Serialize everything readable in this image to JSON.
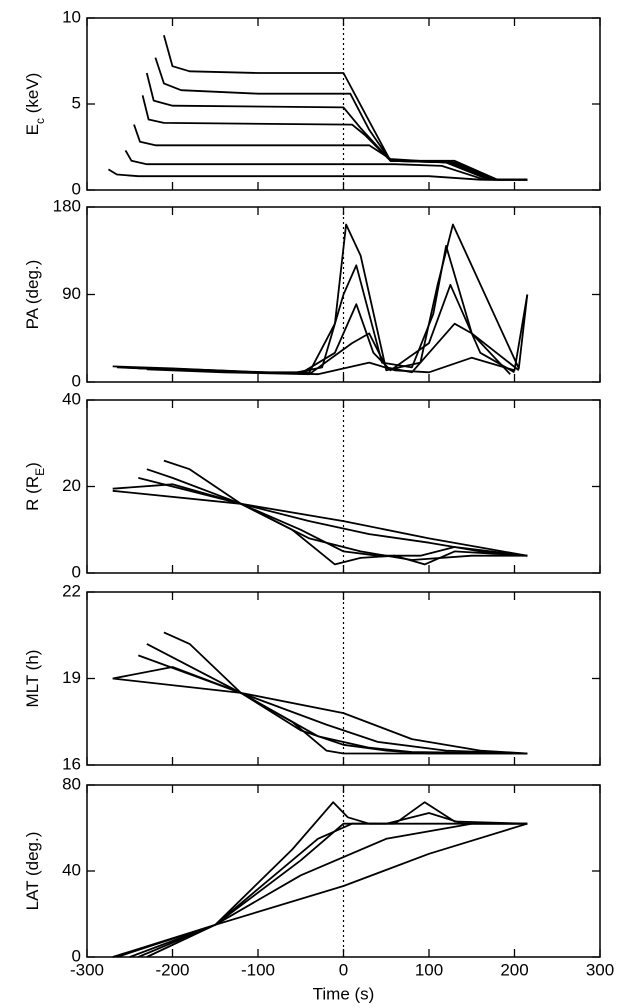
{
  "chart_data": [
    {
      "type": "line",
      "ylabel": [
        "E",
        "c",
        " (keV)"
      ],
      "xlim": [
        -300,
        300
      ],
      "xticks": [
        -300,
        -200,
        -100,
        0,
        100,
        200,
        300
      ],
      "ylim": [
        0,
        10
      ],
      "yticks": [
        0,
        5,
        10
      ],
      "vline": 0,
      "series": [
        {
          "color": "#000",
          "x": [
            -210,
            -200,
            -180,
            -100,
            0,
            30,
            55,
            130,
            180,
            215
          ],
          "values": [
            9,
            7.2,
            6.9,
            6.8,
            6.8,
            4,
            1.7,
            1.7,
            0.6,
            0.6
          ]
        },
        {
          "color": "#000",
          "x": [
            -220,
            -210,
            -190,
            -100,
            8,
            30,
            55,
            125,
            175,
            215
          ],
          "values": [
            7.7,
            6.2,
            5.8,
            5.6,
            5.6,
            3.5,
            1.7,
            1.6,
            0.6,
            0.6
          ]
        },
        {
          "color": "#000",
          "x": [
            -230,
            -222,
            -200,
            0,
            20,
            55,
            130,
            180,
            215
          ],
          "values": [
            6.8,
            5.2,
            4.9,
            4.8,
            3.6,
            1.7,
            1.6,
            0.6,
            0.6
          ]
        },
        {
          "color": "#000",
          "x": [
            -235,
            -228,
            -210,
            10,
            25,
            55,
            125,
            175,
            215
          ],
          "values": [
            5.5,
            4.1,
            3.9,
            3.8,
            3.2,
            1.7,
            1.6,
            0.6,
            0.6
          ]
        },
        {
          "color": "#000",
          "x": [
            -245,
            -238,
            -220,
            30,
            55,
            120,
            170,
            215
          ],
          "values": [
            3.8,
            2.8,
            2.6,
            2.6,
            1.8,
            1.6,
            0.6,
            0.6
          ]
        },
        {
          "color": "#000",
          "x": [
            -255,
            -248,
            -230,
            60,
            115,
            165,
            215
          ],
          "values": [
            2.3,
            1.7,
            1.5,
            1.5,
            1.4,
            0.6,
            0.6
          ]
        },
        {
          "color": "#000",
          "x": [
            -275,
            -265,
            -240,
            100,
            160,
            215
          ],
          "values": [
            1.2,
            0.9,
            0.8,
            0.8,
            0.6,
            0.6
          ]
        }
      ]
    },
    {
      "type": "line",
      "ylabel": [
        "PA (deg.)"
      ],
      "xlim": [
        -300,
        300
      ],
      "xticks": [
        -300,
        -200,
        -100,
        0,
        100,
        200,
        300
      ],
      "ylim": [
        0,
        180
      ],
      "yticks": [
        0,
        90,
        180
      ],
      "vline": 0,
      "series": [
        {
          "color": "#000",
          "x": [
            -270,
            -200,
            -100,
            -40,
            -10,
            3,
            20,
            50,
            90,
            110,
            128,
            205,
            215
          ],
          "values": [
            16,
            14,
            10,
            10,
            60,
            162,
            130,
            12,
            20,
            100,
            162,
            14,
            90
          ]
        },
        {
          "color": "#000",
          "x": [
            -250,
            -150,
            -60,
            -25,
            0,
            15,
            45,
            80,
            105,
            120,
            150,
            205
          ],
          "values": [
            15,
            12,
            9,
            15,
            90,
            120,
            20,
            15,
            70,
            140,
            50,
            12
          ]
        },
        {
          "color": "#000",
          "x": [
            -240,
            -150,
            -50,
            -10,
            15,
            35,
            55,
            100,
            125,
            160,
            200
          ],
          "values": [
            14,
            11,
            9,
            30,
            80,
            30,
            12,
            40,
            100,
            30,
            10
          ]
        },
        {
          "color": "#000",
          "x": [
            -230,
            -140,
            -40,
            10,
            30,
            50,
            80,
            130,
            150,
            195
          ],
          "values": [
            13,
            10,
            8,
            40,
            50,
            15,
            10,
            60,
            50,
            8
          ]
        },
        {
          "color": "#000",
          "x": [
            -265,
            -150,
            -30,
            30,
            60,
            100,
            150,
            200,
            215
          ],
          "values": [
            15,
            11,
            8,
            20,
            12,
            10,
            25,
            12,
            90
          ]
        }
      ]
    },
    {
      "type": "line",
      "ylabel": [
        "R (R",
        "E",
        ")"
      ],
      "xlim": [
        -300,
        300
      ],
      "xticks": [
        -300,
        -200,
        -100,
        0,
        100,
        200,
        300
      ],
      "ylim": [
        0,
        40
      ],
      "yticks": [
        0,
        20,
        40
      ],
      "vline": 0,
      "series": [
        {
          "color": "#000",
          "x": [
            -270,
            -200,
            -120,
            -60,
            -10,
            20,
            60,
            95,
            130,
            215
          ],
          "values": [
            19.5,
            20.5,
            16,
            10,
            2,
            3.5,
            4,
            2,
            5,
            4
          ]
        },
        {
          "color": "#000",
          "x": [
            -210,
            -180,
            -120,
            -50,
            0,
            40,
            90,
            130,
            215
          ],
          "values": [
            26,
            24,
            16,
            10,
            5,
            4,
            4,
            6,
            4
          ]
        },
        {
          "color": "#000",
          "x": [
            -240,
            -120,
            -40,
            30,
            100,
            160,
            215
          ],
          "values": [
            22,
            16,
            12,
            9,
            7,
            5,
            4
          ]
        },
        {
          "color": "#000",
          "x": [
            -270,
            -120,
            0,
            100,
            215
          ],
          "values": [
            19,
            16,
            12,
            8,
            4
          ]
        },
        {
          "color": "#000",
          "x": [
            -230,
            -200,
            -120,
            -40,
            20,
            80,
            150,
            215
          ],
          "values": [
            24,
            22,
            16,
            8,
            5,
            3,
            4,
            4
          ]
        }
      ]
    },
    {
      "type": "line",
      "ylabel": [
        "MLT (h)"
      ],
      "xlim": [
        -300,
        300
      ],
      "xticks": [
        -300,
        -200,
        -100,
        0,
        100,
        200,
        300
      ],
      "ylim": [
        16,
        22
      ],
      "yticks": [
        16,
        19,
        22
      ],
      "vline": 0,
      "series": [
        {
          "color": "#000",
          "x": [
            -270,
            -200,
            -120,
            -60,
            -20,
            0,
            100,
            215
          ],
          "values": [
            19,
            19.4,
            18.5,
            17.5,
            16.5,
            16.4,
            16.4,
            16.4
          ]
        },
        {
          "color": "#000",
          "x": [
            -210,
            -180,
            -120,
            -50,
            0,
            50,
            100,
            215
          ],
          "values": [
            20.6,
            20.2,
            18.5,
            17.2,
            16.7,
            16.5,
            16.4,
            16.4
          ]
        },
        {
          "color": "#000",
          "x": [
            -240,
            -120,
            -20,
            40,
            120,
            215
          ],
          "values": [
            19.8,
            18.5,
            17.4,
            16.8,
            16.5,
            16.4
          ]
        },
        {
          "color": "#000",
          "x": [
            -270,
            -120,
            0,
            80,
            160,
            215
          ],
          "values": [
            19,
            18.5,
            17.8,
            16.9,
            16.5,
            16.4
          ]
        },
        {
          "color": "#000",
          "x": [
            -230,
            -120,
            -30,
            30,
            80,
            215
          ],
          "values": [
            20.2,
            18.5,
            17,
            16.6,
            16.45,
            16.4
          ]
        }
      ]
    },
    {
      "type": "line",
      "ylabel": [
        "LAT (deg.)"
      ],
      "xlabel": "Time (s)",
      "xlim": [
        -300,
        300
      ],
      "xticks": [
        -300,
        -200,
        -100,
        0,
        100,
        200,
        300
      ],
      "ylim": [
        0,
        80
      ],
      "yticks": [
        0,
        40,
        80
      ],
      "vline": 0,
      "series": [
        {
          "color": "#000",
          "x": [
            -240,
            -150,
            -60,
            -12,
            5,
            30,
            60,
            95,
            130,
            215
          ],
          "values": [
            0,
            15,
            50,
            72,
            65,
            62,
            62,
            72,
            63,
            62
          ]
        },
        {
          "color": "#000",
          "x": [
            -250,
            -150,
            -50,
            0,
            50,
            100,
            140,
            215
          ],
          "values": [
            0,
            15,
            45,
            62,
            62,
            67,
            62,
            62
          ]
        },
        {
          "color": "#000",
          "x": [
            -265,
            -150,
            -50,
            50,
            150,
            215
          ],
          "values": [
            0,
            15,
            38,
            55,
            62,
            62
          ]
        },
        {
          "color": "#000",
          "x": [
            -270,
            -150,
            0,
            100,
            215
          ],
          "values": [
            0,
            15,
            33,
            48,
            62
          ]
        },
        {
          "color": "#000",
          "x": [
            -230,
            -150,
            -30,
            10,
            80,
            120,
            215
          ],
          "values": [
            0,
            15,
            55,
            62,
            62,
            62,
            62
          ]
        }
      ]
    }
  ]
}
